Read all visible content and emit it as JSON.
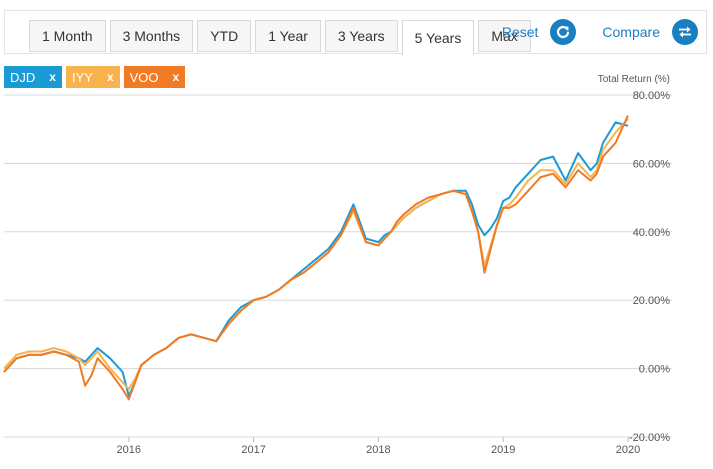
{
  "toolbar": {
    "ranges": [
      {
        "label": "1 Month",
        "active": false
      },
      {
        "label": "3 Months",
        "active": false
      },
      {
        "label": "YTD",
        "active": false
      },
      {
        "label": "1 Year",
        "active": false
      },
      {
        "label": "3 Years",
        "active": false
      },
      {
        "label": "5 Years",
        "active": true
      },
      {
        "label": "Max",
        "active": false
      }
    ],
    "reset_label": "Reset",
    "compare_label": "Compare"
  },
  "tickers": [
    {
      "label": "DJD",
      "remove": "x",
      "color": "#1b9ad6"
    },
    {
      "label": "IYY",
      "remove": "x",
      "color": "#f9b24e"
    },
    {
      "label": "VOO",
      "remove": "x",
      "color": "#f07b24"
    }
  ],
  "chart_data": {
    "type": "line",
    "xlabel": "",
    "ylabel": "Total Return (%)",
    "ylim": [
      -20,
      80
    ],
    "yticks": [
      -20,
      0,
      20,
      40,
      60,
      80
    ],
    "ytick_labels": [
      "-20.00%",
      "0.00%",
      "20.00%",
      "40.00%",
      "60.00%",
      "80.00%"
    ],
    "xlim": [
      2015.0,
      2020.0
    ],
    "xticks": [
      2016,
      2017,
      2018,
      2019,
      2020
    ],
    "xtick_labels": [
      "2016",
      "2017",
      "2018",
      "2019",
      "2020"
    ],
    "grid": true,
    "series": [
      {
        "name": "DJD",
        "color": "#1b9ad6",
        "x": [
          2015.0,
          2015.05,
          2015.1,
          2015.2,
          2015.3,
          2015.4,
          2015.5,
          2015.6,
          2015.65,
          2015.7,
          2015.75,
          2015.85,
          2015.95,
          2016.0,
          2016.05,
          2016.1,
          2016.2,
          2016.3,
          2016.4,
          2016.5,
          2016.6,
          2016.7,
          2016.8,
          2016.9,
          2017.0,
          2017.1,
          2017.2,
          2017.3,
          2017.4,
          2017.5,
          2017.6,
          2017.7,
          2017.8,
          2017.9,
          2018.0,
          2018.05,
          2018.1,
          2018.15,
          2018.2,
          2018.3,
          2018.4,
          2018.5,
          2018.6,
          2018.7,
          2018.75,
          2018.8,
          2018.85,
          2018.9,
          2018.95,
          2019.0,
          2019.05,
          2019.1,
          2019.2,
          2019.3,
          2019.4,
          2019.5,
          2019.6,
          2019.7,
          2019.75,
          2019.8,
          2019.9,
          2020.0
        ],
        "y": [
          -1,
          1,
          3,
          4,
          4,
          5,
          4,
          3,
          2,
          4,
          6,
          3,
          -1,
          -8,
          -4,
          1,
          4,
          6,
          9,
          10,
          9,
          8,
          14,
          18,
          20,
          21,
          23,
          26,
          29,
          32,
          35,
          40,
          48,
          38,
          37,
          39,
          40,
          42,
          44,
          47,
          49,
          51,
          52,
          52,
          48,
          42,
          39,
          41,
          44,
          49,
          50,
          53,
          57,
          61,
          62,
          55,
          63,
          58,
          60,
          66,
          72,
          71
        ]
      },
      {
        "name": "IYY",
        "color": "#f9b24e",
        "x": [
          2015.0,
          2015.05,
          2015.1,
          2015.2,
          2015.3,
          2015.4,
          2015.5,
          2015.6,
          2015.65,
          2015.7,
          2015.75,
          2015.85,
          2015.95,
          2016.0,
          2016.05,
          2016.1,
          2016.2,
          2016.3,
          2016.4,
          2016.5,
          2016.6,
          2016.7,
          2016.8,
          2016.9,
          2017.0,
          2017.1,
          2017.2,
          2017.3,
          2017.4,
          2017.5,
          2017.6,
          2017.7,
          2017.8,
          2017.9,
          2018.0,
          2018.05,
          2018.1,
          2018.15,
          2018.2,
          2018.3,
          2018.4,
          2018.5,
          2018.6,
          2018.7,
          2018.75,
          2018.8,
          2018.85,
          2018.9,
          2018.95,
          2019.0,
          2019.05,
          2019.1,
          2019.2,
          2019.3,
          2019.4,
          2019.5,
          2019.6,
          2019.7,
          2019.75,
          2019.8,
          2019.9,
          2020.0
        ],
        "y": [
          0,
          2,
          4,
          5,
          5,
          6,
          5,
          3,
          1,
          3,
          5,
          0,
          -4,
          -6,
          -3,
          1,
          4,
          6,
          9,
          10,
          9,
          8,
          13,
          17,
          20,
          21,
          23,
          26,
          28,
          31,
          34,
          39,
          46,
          37,
          36,
          38,
          40,
          42,
          44,
          47,
          49,
          51,
          52,
          51,
          46,
          40,
          30,
          36,
          42,
          47,
          48,
          50,
          55,
          58,
          58,
          54,
          60,
          56,
          58,
          64,
          69,
          73
        ]
      },
      {
        "name": "VOO",
        "color": "#f07b24",
        "x": [
          2015.0,
          2015.05,
          2015.1,
          2015.2,
          2015.3,
          2015.4,
          2015.5,
          2015.6,
          2015.65,
          2015.7,
          2015.75,
          2015.85,
          2015.95,
          2016.0,
          2016.05,
          2016.1,
          2016.2,
          2016.3,
          2016.4,
          2016.5,
          2016.6,
          2016.7,
          2016.8,
          2016.9,
          2017.0,
          2017.1,
          2017.2,
          2017.3,
          2017.4,
          2017.5,
          2017.6,
          2017.7,
          2017.8,
          2017.9,
          2018.0,
          2018.05,
          2018.1,
          2018.15,
          2018.2,
          2018.3,
          2018.4,
          2018.5,
          2018.6,
          2018.7,
          2018.75,
          2018.8,
          2018.85,
          2018.9,
          2018.95,
          2019.0,
          2019.05,
          2019.1,
          2019.2,
          2019.3,
          2019.4,
          2019.5,
          2019.6,
          2019.7,
          2019.75,
          2019.8,
          2019.9,
          2020.0
        ],
        "y": [
          -1,
          1,
          3,
          4,
          4,
          5,
          4,
          2,
          -5,
          -2,
          3,
          -1,
          -6,
          -9,
          -4,
          1,
          4,
          6,
          9,
          10,
          9,
          8,
          13,
          17,
          20,
          21,
          23,
          26,
          28,
          31,
          34,
          39,
          47,
          37,
          36,
          38,
          40,
          43,
          45,
          48,
          50,
          51,
          52,
          51,
          46,
          40,
          28,
          35,
          42,
          47,
          47,
          48,
          52,
          56,
          57,
          53,
          58,
          55,
          57,
          62,
          66,
          74
        ]
      }
    ]
  }
}
